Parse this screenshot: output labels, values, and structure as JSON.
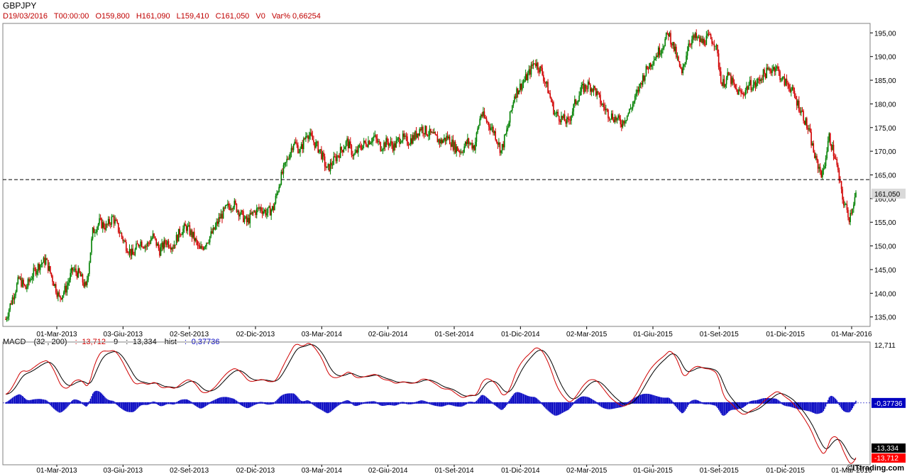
{
  "header": {
    "symbol": "GBPJPY",
    "date": "D19/03/2016",
    "time": "T00:00:00",
    "open": "O159,800",
    "high": "H161,090",
    "low": "L159,410",
    "close": "C161,050",
    "volume": "V0",
    "var": "Var% 0,66254"
  },
  "macd_header": {
    "name": "MACD",
    "params": "(32 , 200)",
    "macd_val": ": -13,712",
    "signal_period": "9",
    "signal_val": ": -13,334",
    "hist_label": "hist",
    "hist_val": ": -0,37736"
  },
  "brand": "©ITtrading.com",
  "colors": {
    "up_candle": "#008000",
    "down_candle": "#d00000",
    "macd_line": "#d00000",
    "signal_line": "#000000",
    "histogram": "#0000c0",
    "last_price_box": "#d9d9d9",
    "macd_value_box": "#ff0000",
    "signal_value_box": "#000000",
    "hist_value_box": "#0000c0"
  },
  "chart_data": [
    {
      "type": "candlestick",
      "ylim": [
        133,
        197
      ],
      "y_ticks": [
        "135,00",
        "140,00",
        "145,00",
        "150,00",
        "155,00",
        "160,00",
        "165,00",
        "170,00",
        "175,00",
        "180,00",
        "185,00",
        "190,00",
        "195,00"
      ],
      "y_tick_values": [
        135,
        140,
        145,
        150,
        155,
        160,
        165,
        170,
        175,
        180,
        185,
        190,
        195
      ],
      "x_tick_labels": [
        "01-Mar-2013",
        "03-Giu-2013",
        "02-Set-2013",
        "02-Dic-2013",
        "03-Mar-2014",
        "02-Giu-2014",
        "01-Set-2014",
        "01-Dic-2014",
        "02-Mar-2015",
        "01-Giu-2015",
        "01-Set-2015",
        "01-Dic-2015",
        "01-Mar-2016"
      ],
      "reference_line": 164,
      "last_price_label": "161,050",
      "last_price": 161.05,
      "close_path": [
        [
          0,
          134.5
        ],
        [
          6,
          139
        ],
        [
          12,
          143
        ],
        [
          18,
          141
        ],
        [
          24,
          144
        ],
        [
          30,
          146
        ],
        [
          36,
          147
        ],
        [
          42,
          143
        ],
        [
          48,
          139
        ],
        [
          54,
          141
        ],
        [
          60,
          145
        ],
        [
          66,
          144
        ],
        [
          72,
          141
        ],
        [
          78,
          153
        ],
        [
          84,
          155
        ],
        [
          90,
          154
        ],
        [
          96,
          156
        ],
        [
          102,
          153
        ],
        [
          108,
          150
        ],
        [
          114,
          148
        ],
        [
          120,
          151
        ],
        [
          126,
          150
        ],
        [
          132,
          152
        ],
        [
          138,
          149
        ],
        [
          144,
          151
        ],
        [
          150,
          150
        ],
        [
          156,
          153
        ],
        [
          162,
          154
        ],
        [
          168,
          152
        ],
        [
          174,
          149
        ],
        [
          180,
          151
        ],
        [
          186,
          153
        ],
        [
          192,
          156
        ],
        [
          198,
          158
        ],
        [
          204,
          159
        ],
        [
          210,
          157
        ],
        [
          216,
          155
        ],
        [
          222,
          157
        ],
        [
          228,
          158
        ],
        [
          234,
          157
        ],
        [
          240,
          158
        ],
        [
          246,
          164
        ],
        [
          252,
          168
        ],
        [
          258,
          172
        ],
        [
          264,
          170
        ],
        [
          270,
          174
        ],
        [
          276,
          172
        ],
        [
          282,
          170
        ],
        [
          288,
          166
        ],
        [
          294,
          168
        ],
        [
          300,
          170
        ],
        [
          306,
          172
        ],
        [
          312,
          169
        ],
        [
          318,
          171
        ],
        [
          324,
          172
        ],
        [
          330,
          173
        ],
        [
          336,
          171
        ],
        [
          342,
          172
        ],
        [
          348,
          171
        ],
        [
          354,
          173
        ],
        [
          360,
          172
        ],
        [
          366,
          173
        ],
        [
          372,
          175
        ],
        [
          378,
          174
        ],
        [
          384,
          173
        ],
        [
          390,
          172
        ],
        [
          396,
          173
        ],
        [
          402,
          171
        ],
        [
          408,
          170
        ],
        [
          414,
          172
        ],
        [
          420,
          171
        ],
        [
          426,
          178
        ],
        [
          432,
          176
        ],
        [
          438,
          174
        ],
        [
          444,
          170
        ],
        [
          450,
          175
        ],
        [
          456,
          182
        ],
        [
          462,
          184
        ],
        [
          468,
          186
        ],
        [
          474,
          189
        ],
        [
          480,
          187
        ],
        [
          486,
          183
        ],
        [
          492,
          178
        ],
        [
          498,
          177
        ],
        [
          504,
          176
        ],
        [
          510,
          180
        ],
        [
          516,
          183
        ],
        [
          522,
          184
        ],
        [
          528,
          183
        ],
        [
          534,
          180
        ],
        [
          540,
          178
        ],
        [
          546,
          177
        ],
        [
          552,
          176
        ],
        [
          558,
          178
        ],
        [
          564,
          181
        ],
        [
          570,
          185
        ],
        [
          576,
          188
        ],
        [
          582,
          190
        ],
        [
          588,
          192
        ],
        [
          594,
          195
        ],
        [
          600,
          191
        ],
        [
          606,
          186
        ],
        [
          612,
          193
        ],
        [
          618,
          194
        ],
        [
          624,
          193
        ],
        [
          630,
          194
        ],
        [
          636,
          193
        ],
        [
          642,
          184
        ],
        [
          648,
          186
        ],
        [
          654,
          183
        ],
        [
          660,
          182
        ],
        [
          666,
          184
        ],
        [
          672,
          184
        ],
        [
          678,
          186
        ],
        [
          684,
          187
        ],
        [
          690,
          188
        ],
        [
          696,
          185
        ],
        [
          702,
          184
        ],
        [
          708,
          181
        ],
        [
          714,
          178
        ],
        [
          720,
          174
        ],
        [
          726,
          168
        ],
        [
          732,
          165
        ],
        [
          738,
          173
        ],
        [
          744,
          168
        ],
        [
          750,
          160
        ],
        [
          756,
          156
        ],
        [
          762,
          161
        ]
      ]
    },
    {
      "type": "line",
      "title": "MACD",
      "ylim": [
        -14,
        13
      ],
      "y_tick_label": "12,711",
      "series": [
        {
          "name": "MACD (32 , 200)",
          "last_label": "-13,712"
        },
        {
          "name": "9",
          "last_label": "-13,334"
        },
        {
          "name": "hist",
          "last_label": "-0,37736"
        }
      ]
    }
  ]
}
